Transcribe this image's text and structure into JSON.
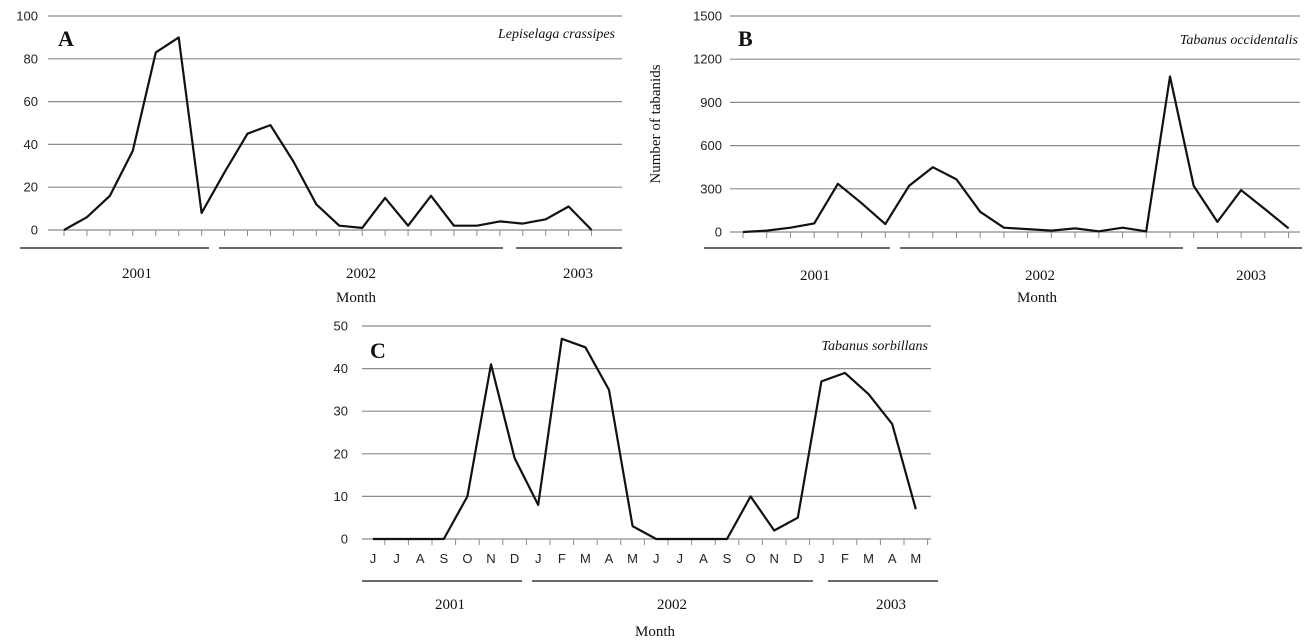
{
  "chart_data": [
    {
      "type": "line",
      "panel_label": "A",
      "species": "Lepiselaga crassipes",
      "xlabel": "Month",
      "ylabel": "",
      "ylim": [
        0,
        100
      ],
      "yticks": [
        0,
        20,
        40,
        60,
        80,
        100
      ],
      "grid": true,
      "year_labels": [
        "2001",
        "2002",
        "2003"
      ],
      "series": [
        {
          "values": [
            0,
            6,
            16,
            37,
            83,
            90,
            8,
            27,
            45,
            49,
            32,
            12,
            2,
            1,
            15,
            2,
            16,
            2,
            2,
            4,
            3,
            5,
            11,
            0
          ]
        }
      ]
    },
    {
      "type": "line",
      "panel_label": "B",
      "species": "Tabanus occidentalis",
      "xlabel": "Month",
      "ylabel": "Number of tabanids",
      "ylim": [
        0,
        1500
      ],
      "yticks": [
        0,
        300,
        600,
        900,
        1200,
        1500
      ],
      "grid": true,
      "year_labels": [
        "2001",
        "2002",
        "2003"
      ],
      "series": [
        {
          "values": [
            0,
            10,
            30,
            60,
            335,
            200,
            55,
            320,
            450,
            365,
            140,
            30,
            20,
            10,
            25,
            5,
            30,
            5,
            1080,
            320,
            70,
            290,
            160,
            25
          ]
        }
      ]
    },
    {
      "type": "line",
      "panel_label": "C",
      "species": "Tabanus sorbillans",
      "xlabel": "Month",
      "ylabel": "",
      "ylim": [
        0,
        50
      ],
      "yticks": [
        0,
        10,
        20,
        30,
        40,
        50
      ],
      "grid": true,
      "categories": [
        "J",
        "J",
        "A",
        "S",
        "O",
        "N",
        "D",
        "J",
        "F",
        "M",
        "A",
        "M",
        "J",
        "J",
        "A",
        "S",
        "O",
        "N",
        "D",
        "J",
        "F",
        "M",
        "A",
        "M"
      ],
      "year_labels": [
        "2001",
        "2002",
        "2003"
      ],
      "series": [
        {
          "values": [
            0,
            0,
            0,
            0,
            10,
            41,
            19,
            8,
            47,
            45,
            35,
            3,
            0,
            0,
            0,
            0,
            10,
            2,
            5,
            37,
            39,
            34,
            27,
            7
          ]
        }
      ]
    }
  ]
}
